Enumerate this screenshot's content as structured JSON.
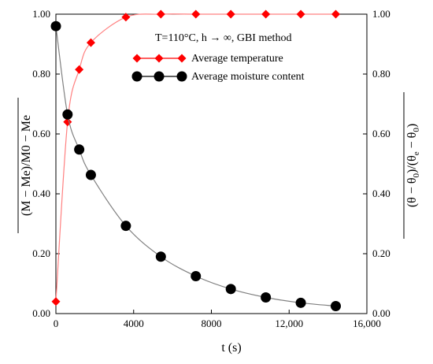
{
  "chart_data": {
    "type": "scatter",
    "annotation": "T=110°C, h → ∞, GBI method",
    "x_axis": {
      "label": "t (s)",
      "range": [
        0,
        16000
      ],
      "ticks": [
        0,
        4000,
        8000,
        12000,
        16000
      ],
      "tick_labels": [
        "0",
        "4000",
        "8000",
        "12,000",
        "16,000"
      ]
    },
    "y_left": {
      "label": "(M − Me)/M0 − Me",
      "range": [
        0,
        1
      ],
      "ticks": [
        0,
        0.2,
        0.4,
        0.6,
        0.8,
        1.0
      ],
      "tick_labels": [
        "0.00",
        "0.20",
        "0.40",
        "0.60",
        "0.80",
        "1.00"
      ]
    },
    "y_right": {
      "label_main": "(θ − θ",
      "label_sub0": "0",
      "label_mid": ")/(θ",
      "label_sube": "e",
      "label_mid2": " − θ",
      "label_sub0b": "0",
      "label_end": ")",
      "range": [
        0,
        1
      ],
      "ticks": [
        0,
        0.2,
        0.4,
        0.6,
        0.8,
        1.0
      ],
      "tick_labels": [
        "0.00",
        "0.20",
        "0.40",
        "0.60",
        "0.80",
        "1.00"
      ]
    },
    "series": [
      {
        "name": "Average temperature",
        "axis": "right",
        "color": "#ff0000",
        "marker": "diamond",
        "x": [
          0,
          600,
          1200,
          1800,
          3600,
          5400,
          7200,
          9000,
          10800,
          12600,
          14400
        ],
        "y": [
          0.04,
          0.64,
          0.815,
          0.905,
          0.99,
          1.0,
          1.0,
          1.0,
          1.0,
          1.0,
          1.0
        ]
      },
      {
        "name": "Average moisture content",
        "axis": "left",
        "color": "#000000",
        "marker": "circle",
        "x": [
          0,
          600,
          1200,
          1800,
          3600,
          5400,
          7200,
          9000,
          10800,
          12600,
          14400
        ],
        "y": [
          0.96,
          0.665,
          0.548,
          0.463,
          0.293,
          0.19,
          0.125,
          0.082,
          0.054,
          0.036,
          0.025
        ]
      }
    ],
    "legend": [
      {
        "label": "Average temperature",
        "color": "#ff0000",
        "marker": "diamond"
      },
      {
        "label": "Average moisture content",
        "color": "#000000",
        "marker": "circle"
      }
    ],
    "legend_position": "top-right",
    "grid": false
  }
}
